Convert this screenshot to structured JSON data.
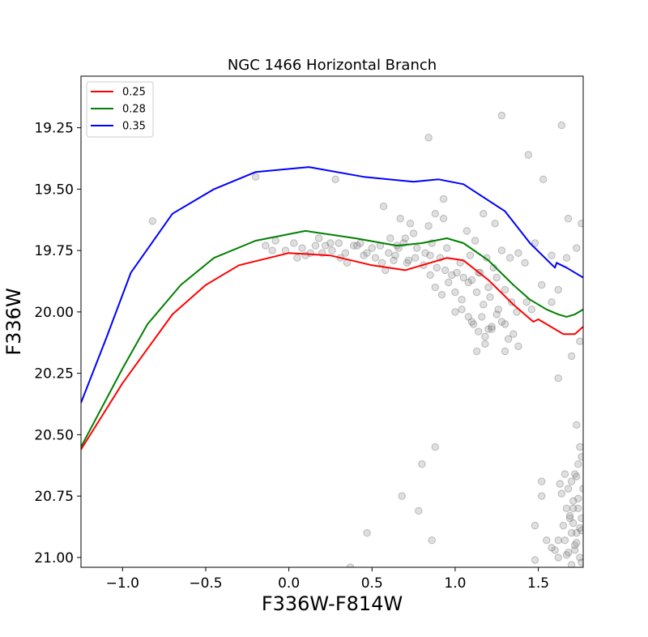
{
  "chart_data": {
    "type": "scatter",
    "title": "NGC 1466 Horizontal Branch",
    "xlabel": "F336W-F814W",
    "ylabel": "F336W",
    "xlim": [
      -1.25,
      1.77
    ],
    "ylim": [
      21.04,
      19.04
    ],
    "y_inverted": true,
    "grid": false,
    "legend_position": "top-left",
    "x_ticks": [
      -1.0,
      -0.5,
      0.0,
      0.5,
      1.0,
      1.5
    ],
    "x_tick_labels": [
      "−1.0",
      "−0.5",
      "0.0",
      "0.5",
      "1.0",
      "1.5"
    ],
    "y_ticks": [
      19.25,
      19.5,
      19.75,
      20.0,
      20.25,
      20.5,
      20.75,
      21.0
    ],
    "y_tick_labels": [
      "19.25",
      "19.50",
      "19.75",
      "20.00",
      "20.25",
      "20.50",
      "20.75",
      "21.00"
    ],
    "series": [
      {
        "name": "0.25",
        "color": "#ff0000",
        "x": [
          -1.25,
          -1.0,
          -0.85,
          -0.7,
          -0.5,
          -0.3,
          0.0,
          0.25,
          0.5,
          0.7,
          0.85,
          0.95,
          1.05,
          1.2,
          1.35,
          1.47,
          1.5,
          1.55,
          1.6,
          1.65,
          1.72,
          1.77
        ],
        "y": [
          20.56,
          20.29,
          20.15,
          20.01,
          19.89,
          19.81,
          19.76,
          19.77,
          19.81,
          19.83,
          19.8,
          19.78,
          19.79,
          19.87,
          19.97,
          20.04,
          20.03,
          20.05,
          20.07,
          20.09,
          20.09,
          20.06
        ]
      },
      {
        "name": "0.28",
        "color": "#008000",
        "x": [
          -1.25,
          -1.0,
          -0.85,
          -0.65,
          -0.45,
          -0.2,
          0.1,
          0.4,
          0.65,
          0.8,
          0.95,
          1.05,
          1.2,
          1.35,
          1.45,
          1.55,
          1.62,
          1.67,
          1.72,
          1.77
        ],
        "y": [
          20.55,
          20.23,
          20.05,
          19.89,
          19.78,
          19.71,
          19.67,
          19.7,
          19.73,
          19.72,
          19.7,
          19.72,
          19.79,
          19.89,
          19.95,
          19.99,
          20.01,
          20.02,
          20.01,
          19.99
        ]
      },
      {
        "name": "0.35",
        "color": "#0000ff",
        "x": [
          -1.25,
          -1.1,
          -0.95,
          -0.7,
          -0.45,
          -0.2,
          0.12,
          0.45,
          0.75,
          0.9,
          1.05,
          1.3,
          1.45,
          1.6,
          1.61,
          1.67,
          1.77
        ],
        "y": [
          20.37,
          20.11,
          19.84,
          19.6,
          19.5,
          19.43,
          19.41,
          19.45,
          19.47,
          19.46,
          19.48,
          19.59,
          19.72,
          19.82,
          19.8,
          19.82,
          19.86
        ]
      }
    ],
    "scatter_points": {
      "color": "#808080",
      "x": [
        -0.82,
        -0.2,
        0.28,
        0.84,
        1.28,
        1.44,
        1.64,
        1.53,
        1.68,
        0.93,
        0.57,
        0.75,
        0.84,
        0.88,
        0.93,
        0.65,
        0.67,
        0.7,
        0.73,
        1.07,
        1.12,
        1.17,
        1.24,
        1.48,
        1.58,
        -0.14,
        -0.08,
        -0.02,
        0.03,
        0.08,
        0.13,
        0.18,
        0.22,
        0.26,
        0.3,
        0.34,
        0.39,
        0.43,
        0.47,
        0.52,
        0.55,
        0.61,
        0.64,
        0.69,
        0.72,
        0.77,
        0.82,
        0.86,
        0.91,
        0.95,
        1.03,
        1.09,
        1.14,
        1.19,
        1.23,
        1.28,
        1.33,
        1.38,
        1.42,
        -0.1,
        0.05,
        0.1,
        0.16,
        0.2,
        0.25,
        0.31,
        0.35,
        0.41,
        0.45,
        0.5,
        0.56,
        0.6,
        0.63,
        0.66,
        0.71,
        0.76,
        0.81,
        0.85,
        0.89,
        0.94,
        0.98,
        1.01,
        1.05,
        1.1,
        1.15,
        1.2,
        1.25,
        0.85,
        0.88,
        0.92,
        0.96,
        1.0,
        1.04,
        1.08,
        1.13,
        1.17,
        1.21,
        1.26,
        1.3,
        1.34,
        1.0,
        1.04,
        1.08,
        1.11,
        1.16,
        1.2,
        1.25,
        1.3,
        1.35,
        1.1,
        1.14,
        1.18,
        1.22,
        1.28,
        1.32,
        1.38,
        1.13,
        1.18,
        1.22,
        1.3,
        1.37,
        1.46,
        1.43,
        1.52,
        1.58,
        1.62,
        1.67,
        1.73,
        1.76,
        1.75,
        0.58,
        1.62,
        1.7,
        0.88,
        0.8,
        0.68,
        0.78,
        0.86,
        0.47,
        0.37,
        1.73,
        1.75,
        1.76,
        1.74,
        1.72,
        1.7,
        1.68,
        1.66,
        1.63,
        1.71,
        1.74,
        1.76,
        1.75,
        1.73,
        1.71,
        1.69,
        1.67,
        1.65,
        1.62,
        1.6,
        1.66,
        1.72,
        1.7,
        1.75,
        1.76,
        1.68,
        1.73,
        1.71,
        1.77,
        1.74,
        1.52,
        1.48,
        1.48,
        1.52,
        1.55,
        1.58,
        1.62,
        1.64,
        1.69,
        1.72,
        1.76,
        1.7,
        1.67,
        1.73
      ],
      "y": [
        19.63,
        19.45,
        19.46,
        19.29,
        19.2,
        19.36,
        19.24,
        19.46,
        19.62,
        19.54,
        19.57,
        19.68,
        19.65,
        19.6,
        19.62,
        19.73,
        19.62,
        19.7,
        19.64,
        19.67,
        19.71,
        19.6,
        19.64,
        19.72,
        19.77,
        19.73,
        19.71,
        19.75,
        19.72,
        19.74,
        19.76,
        19.7,
        19.73,
        19.75,
        19.72,
        19.76,
        19.73,
        19.72,
        19.76,
        19.78,
        19.73,
        19.7,
        19.77,
        19.72,
        19.79,
        19.74,
        19.76,
        19.72,
        19.78,
        19.74,
        19.8,
        19.77,
        19.84,
        19.78,
        19.82,
        19.75,
        19.78,
        19.76,
        19.8,
        19.75,
        19.78,
        19.77,
        19.73,
        19.76,
        19.72,
        19.78,
        19.8,
        19.73,
        19.77,
        19.74,
        19.8,
        19.76,
        19.79,
        19.74,
        19.8,
        19.78,
        19.81,
        19.77,
        19.82,
        19.83,
        19.85,
        19.84,
        19.86,
        19.87,
        19.84,
        19.9,
        19.86,
        19.85,
        19.9,
        19.93,
        19.88,
        19.92,
        19.95,
        19.88,
        19.92,
        19.97,
        19.94,
        19.99,
        19.91,
        19.96,
        20.0,
        19.99,
        20.02,
        20.05,
        20.02,
        20.07,
        20.01,
        20.05,
        20.09,
        20.04,
        20.08,
        20.1,
        20.07,
        20.04,
        20.11,
        20.14,
        20.16,
        20.13,
        20.06,
        20.16,
        20.0,
        19.99,
        19.96,
        19.89,
        19.96,
        19.91,
        19.78,
        19.74,
        19.64,
        20.12,
        19.83,
        20.27,
        20.18,
        20.55,
        20.62,
        20.75,
        20.81,
        20.93,
        20.9,
        21.04,
        20.46,
        20.55,
        20.59,
        20.62,
        20.66,
        20.69,
        20.72,
        20.66,
        20.7,
        20.77,
        20.8,
        20.84,
        20.88,
        20.9,
        20.86,
        20.83,
        20.8,
        20.87,
        20.93,
        20.97,
        20.93,
        20.97,
        20.9,
        21.0,
        21.02,
        20.98,
        20.67,
        20.8,
        20.72,
        20.76,
        20.75,
        20.87,
        21.01,
        20.69,
        20.93,
        20.96,
        21.0,
        20.74,
        20.84,
        20.95,
        20.89,
        21.03,
        20.99,
        20.94
      ]
    }
  }
}
